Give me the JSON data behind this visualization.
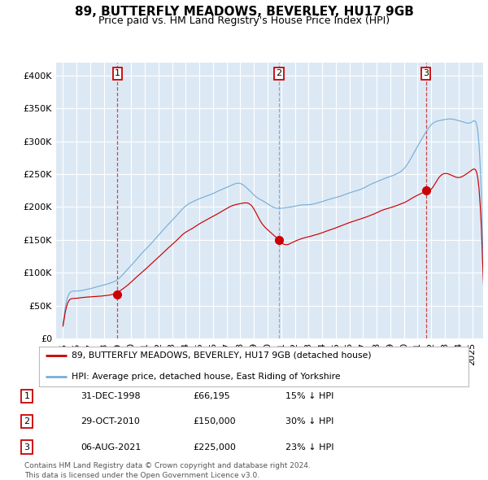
{
  "title": "89, BUTTERFLY MEADOWS, BEVERLEY, HU17 9GB",
  "subtitle": "Price paid vs. HM Land Registry's House Price Index (HPI)",
  "title_fontsize": 11,
  "subtitle_fontsize": 9,
  "background_color": "#ffffff",
  "plot_bg_color": "#dce9f5",
  "grid_color": "#ffffff",
  "red_line_color": "#cc0000",
  "blue_line_color": "#7aaed6",
  "sale_marker_color": "#cc0000",
  "sales": [
    {
      "x_val": 1999.0,
      "price": 66195,
      "label": "1",
      "vline_color": "#cc3333"
    },
    {
      "x_val": 2010.83,
      "price": 150000,
      "label": "2",
      "vline_color": "#9999bb"
    },
    {
      "x_val": 2021.6,
      "price": 225000,
      "label": "3",
      "vline_color": "#cc3333"
    }
  ],
  "ylim": [
    0,
    420000
  ],
  "yticks": [
    0,
    50000,
    100000,
    150000,
    200000,
    250000,
    300000,
    350000,
    400000
  ],
  "xlim_start": 1994.5,
  "xlim_end": 2025.8,
  "xtick_years": [
    1995,
    1996,
    1997,
    1998,
    1999,
    2000,
    2001,
    2002,
    2003,
    2004,
    2005,
    2006,
    2007,
    2008,
    2009,
    2010,
    2011,
    2012,
    2013,
    2014,
    2015,
    2016,
    2017,
    2018,
    2019,
    2020,
    2021,
    2022,
    2023,
    2024,
    2025
  ],
  "legend_items": [
    {
      "label": "89, BUTTERFLY MEADOWS, BEVERLEY, HU17 9GB (detached house)",
      "color": "#cc0000"
    },
    {
      "label": "HPI: Average price, detached house, East Riding of Yorkshire",
      "color": "#7aaed6"
    }
  ],
  "table_rows": [
    {
      "num": "1",
      "date": "31-DEC-1998",
      "price": "£66,195",
      "pct": "15% ↓ HPI"
    },
    {
      "num": "2",
      "date": "29-OCT-2010",
      "price": "£150,000",
      "pct": "30% ↓ HPI"
    },
    {
      "num": "3",
      "date": "06-AUG-2021",
      "price": "£225,000",
      "pct": "23% ↓ HPI"
    }
  ],
  "footnote": "Contains HM Land Registry data © Crown copyright and database right 2024.\nThis data is licensed under the Open Government Licence v3.0."
}
